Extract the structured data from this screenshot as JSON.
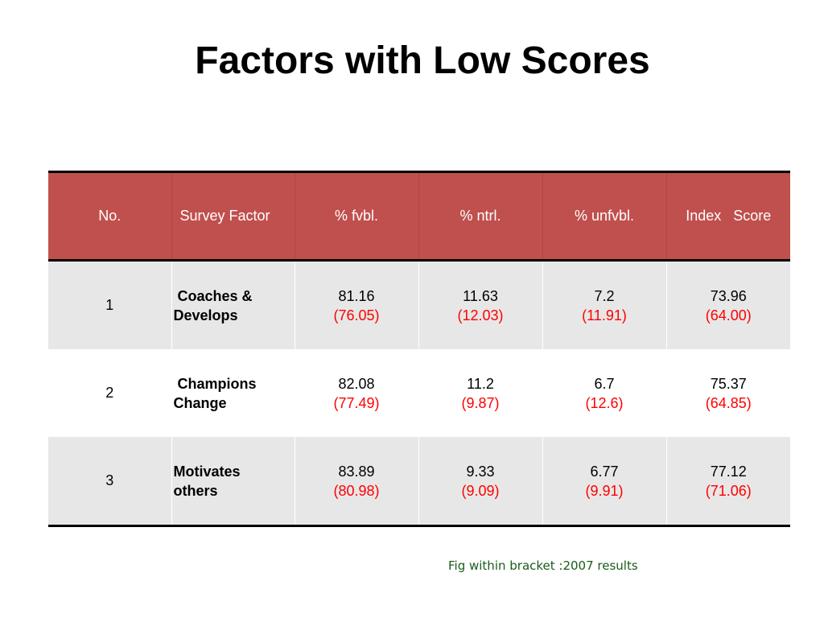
{
  "title": "Factors with Low Scores",
  "table": {
    "headers": {
      "no": "No.",
      "factor": "Survey Factor",
      "fvbl": "% fvbl.",
      "ntrl": "% ntrl.",
      "unfvbl": "% unfvbl.",
      "index": "Index   Score"
    },
    "rows": [
      {
        "no": "1",
        "factor": " Coaches & Develops",
        "fvbl": "81.16",
        "fvbl_prev": "(76.05)",
        "ntrl": "11.63",
        "ntrl_prev": "(12.03)",
        "unfvbl": "7.2",
        "unfvbl_prev": "(11.91)",
        "index": "73.96",
        "index_prev": "(64.00)"
      },
      {
        "no": "2",
        "factor": " Champions Change",
        "fvbl": "82.08",
        "fvbl_prev": "(77.49)",
        "ntrl": "11.2",
        "ntrl_prev": "(9.87)",
        "unfvbl": "6.7",
        "unfvbl_prev": "(12.6)",
        "index": "75.37",
        "index_prev": "(64.85)"
      },
      {
        "no": "3",
        "factor": "Motivates others",
        "fvbl": "83.89",
        "fvbl_prev": "(80.98)",
        "ntrl": "9.33",
        "ntrl_prev": "(9.09)",
        "unfvbl": "6.77",
        "unfvbl_prev": "(9.91)",
        "index": "77.12",
        "index_prev": "(71.06)"
      }
    ]
  },
  "footnote": "Fig within bracket :2007 results",
  "colors": {
    "header_bg": "#c0504d",
    "previous_value": "#ff0000",
    "footnote": "#1a5c1a"
  }
}
